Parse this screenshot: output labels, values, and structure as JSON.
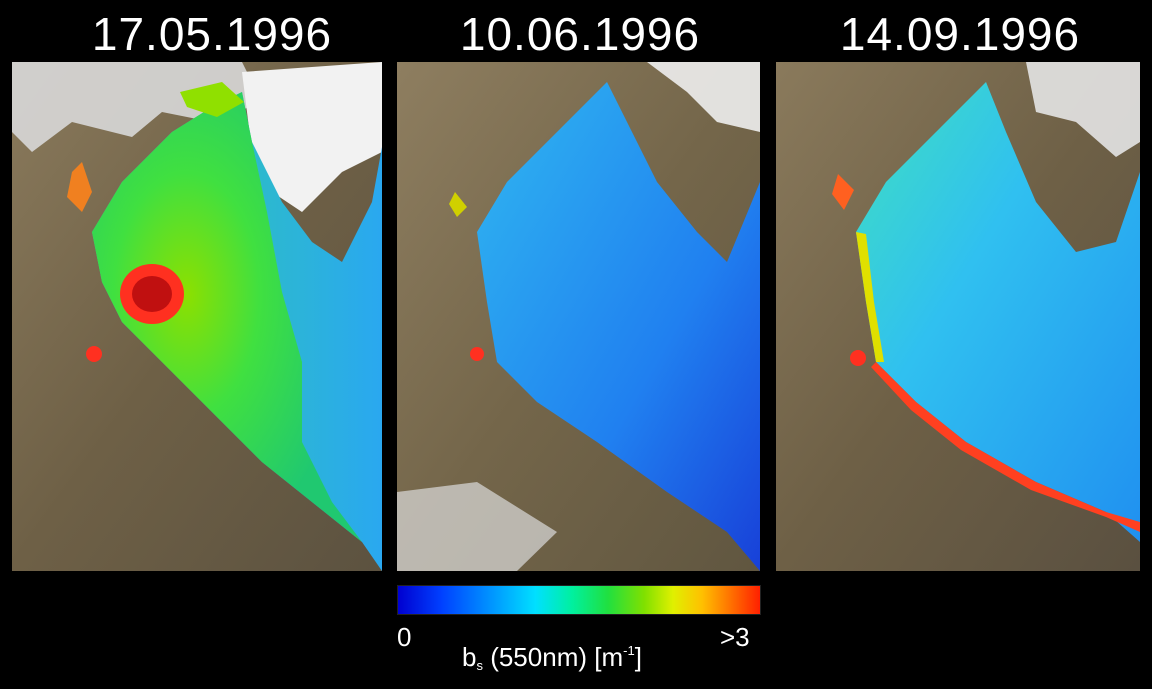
{
  "panels": [
    {
      "date": "17.05.1996"
    },
    {
      "date": "10.06.1996"
    },
    {
      "date": "14.09.1996"
    }
  ],
  "colorbar": {
    "min_label": "0",
    "max_label": ">3",
    "title_main": "b",
    "title_sub": "s",
    "title_rest": " (550nm) [m",
    "title_sup": "-1",
    "title_close": "]"
  },
  "colors": {
    "land": "#7a6a4e",
    "cloud": "#e8e8e8",
    "background": "#000000"
  }
}
